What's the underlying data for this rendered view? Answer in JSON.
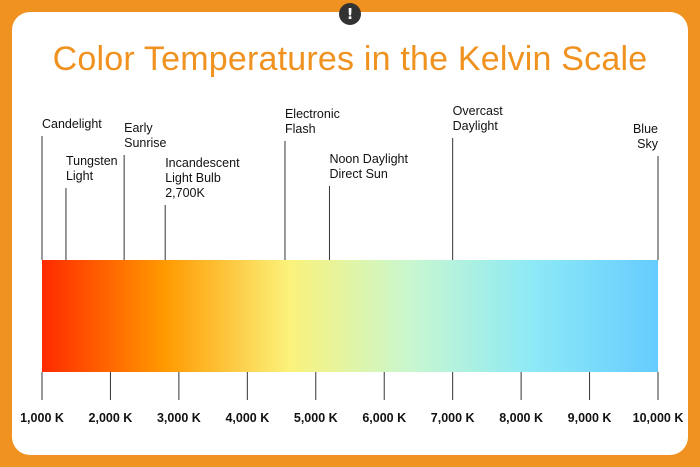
{
  "title": "Color Temperatures in the Kelvin Scale",
  "alert_icon": "!",
  "colors": {
    "frame": "#f0921f",
    "title": "#f0921f",
    "gradient": [
      "#ff2a00",
      "#ff9a00",
      "#fbf27a",
      "#c8f7d0",
      "#8ce9f6",
      "#66ccff"
    ]
  },
  "scale": {
    "min": 1000,
    "max": 10000
  },
  "ticks": [
    {
      "value": 1000,
      "label": "1,000 K"
    },
    {
      "value": 2000,
      "label": "2,000 K"
    },
    {
      "value": 3000,
      "label": "3,000 K"
    },
    {
      "value": 4000,
      "label": "4,000 K"
    },
    {
      "value": 5000,
      "label": "5,000 K"
    },
    {
      "value": 6000,
      "label": "6,000 K"
    },
    {
      "value": 7000,
      "label": "7,000 K"
    },
    {
      "value": 8000,
      "label": "8,000 K"
    },
    {
      "value": 9000,
      "label": "9,000 K"
    },
    {
      "value": 10000,
      "label": "10,000 K"
    }
  ],
  "sources": [
    {
      "name": "candlelight",
      "value": 1000,
      "lines": [
        "Candelight"
      ],
      "align": "start"
    },
    {
      "name": "tungsten-light",
      "value": 1350,
      "lines": [
        "Tungsten",
        "Light"
      ],
      "align": "start"
    },
    {
      "name": "early-sunrise",
      "value": 2200,
      "lines": [
        "Early",
        "Sunrise"
      ],
      "align": "start"
    },
    {
      "name": "incandescent",
      "value": 2800,
      "lines": [
        "Incandescent",
        "Light Bulb",
        "2,700K"
      ],
      "align": "start"
    },
    {
      "name": "electronic-flash",
      "value": 4550,
      "lines": [
        "Electronic",
        "Flash"
      ],
      "align": "start"
    },
    {
      "name": "noon-daylight",
      "value": 5200,
      "lines": [
        "Noon Daylight",
        "Direct Sun"
      ],
      "align": "start"
    },
    {
      "name": "overcast-daylight",
      "value": 7000,
      "lines": [
        "Overcast",
        "Daylight"
      ],
      "align": "start"
    },
    {
      "name": "blue-sky",
      "value": 10000,
      "lines": [
        "Blue",
        "Sky"
      ],
      "align": "end"
    }
  ]
}
